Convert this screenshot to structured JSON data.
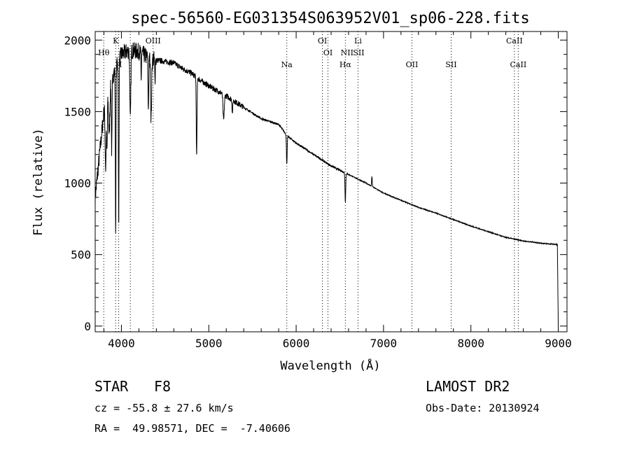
{
  "chart_data": {
    "type": "line",
    "title": "spec-56560-EG031354S063952V01_sp06-228.fits",
    "xlabel": "Wavelength (Å)",
    "ylabel": "Flux (relative)",
    "xlim": [
      3700,
      9100
    ],
    "ylim": [
      -40,
      2060
    ],
    "xticks": [
      4000,
      5000,
      6000,
      7000,
      8000,
      9000
    ],
    "yticks": [
      0,
      500,
      1000,
      1500,
      2000
    ],
    "grid": false,
    "continuum": {
      "x": [
        3700,
        3800,
        3900,
        4000,
        4100,
        4200,
        4300,
        4400,
        4500,
        4600,
        4700,
        4800,
        4900,
        5000,
        5200,
        5400,
        5600,
        5800,
        5900,
        6000,
        6200,
        6400,
        6600,
        6800,
        7000,
        7200,
        7400,
        7600,
        7800,
        8000,
        8200,
        8400,
        8600,
        8800,
        8990,
        9000
      ],
      "y": [
        900,
        1500,
        1750,
        1900,
        1930,
        1920,
        1880,
        1860,
        1850,
        1840,
        1800,
        1770,
        1720,
        1680,
        1610,
        1530,
        1450,
        1410,
        1330,
        1280,
        1200,
        1120,
        1060,
        1000,
        930,
        880,
        830,
        790,
        745,
        700,
        660,
        620,
        595,
        580,
        570,
        0
      ]
    },
    "absorption": [
      {
        "center": 3820,
        "width": 8,
        "depth": 450
      },
      {
        "center": 3835,
        "width": 6,
        "depth": 350
      },
      {
        "center": 3860,
        "width": 10,
        "depth": 300
      },
      {
        "center": 3889,
        "width": 6,
        "depth": 500
      },
      {
        "center": 3934,
        "width": 5,
        "depth": 1150
      },
      {
        "center": 3969,
        "width": 5,
        "depth": 1200
      },
      {
        "center": 4102,
        "width": 8,
        "depth": 500
      },
      {
        "center": 4226,
        "width": 4,
        "depth": 200
      },
      {
        "center": 4308,
        "width": 6,
        "depth": 350
      },
      {
        "center": 4340,
        "width": 8,
        "depth": 420
      },
      {
        "center": 4384,
        "width": 4,
        "depth": 160
      },
      {
        "center": 4861,
        "width": 6,
        "depth": 560
      },
      {
        "center": 5170,
        "width": 10,
        "depth": 180
      },
      {
        "center": 5270,
        "width": 6,
        "depth": 90
      },
      {
        "center": 5893,
        "width": 6,
        "depth": 200
      },
      {
        "center": 6563,
        "width": 6,
        "depth": 200
      }
    ],
    "emission": [
      {
        "center": 6867,
        "width": 5,
        "height": 70
      }
    ],
    "line_labels": [
      {
        "label": "Hθ",
        "wavelength": 3798,
        "row": 2
      },
      {
        "label": "K",
        "wavelength": 3934,
        "row": 1
      },
      {
        "label": "H",
        "wavelength": 3969,
        "row": 3
      },
      {
        "label": "OIII",
        "wavelength": 4363,
        "row": 1
      },
      {
        "label": "Na",
        "wavelength": 5893,
        "row": 4
      },
      {
        "label": "OI",
        "wavelength": 6300,
        "row": 1
      },
      {
        "label": "OI",
        "wavelength": 6364,
        "row": 2
      },
      {
        "label": "Li",
        "wavelength": 6708,
        "row": 1
      },
      {
        "label": "NII",
        "wavelength": 6583,
        "row": 2
      },
      {
        "label": "SII",
        "wavelength": 6716,
        "row": 2
      },
      {
        "label": "Hα",
        "wavelength": 6563,
        "row": 4
      },
      {
        "label": "OII",
        "wavelength": 7325,
        "row": 4
      },
      {
        "label": "SII",
        "wavelength": 7774,
        "row": 4
      },
      {
        "label": "CaII",
        "wavelength": 8498,
        "row": 1
      },
      {
        "label": "CaII",
        "wavelength": 8542,
        "row": 4
      }
    ],
    "line_markers": [
      3798,
      3934,
      3969,
      4102,
      4363,
      5893,
      6300,
      6364,
      6563,
      6708,
      7325,
      7774,
      8498,
      8542
    ]
  },
  "info": {
    "object_class": "STAR",
    "subclass": "F8",
    "survey": "LAMOST DR2",
    "velocity": "cz = -55.8 ± 27.6 km/s",
    "obs_date": "Obs-Date: 20130924",
    "coords": "RA =  49.98571, DEC =  -7.40606"
  }
}
